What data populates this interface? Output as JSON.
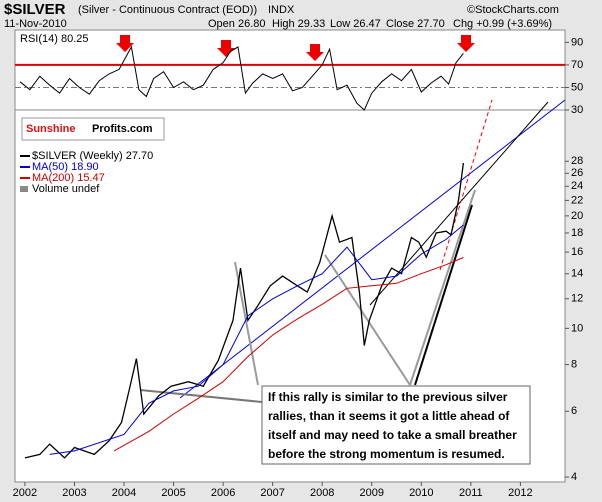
{
  "header": {
    "symbol": "$SILVER",
    "name": "(Silver - Continuous Contract (EOD))",
    "exchange": "INDX",
    "date": "11-Nov-2010",
    "open": "Open 26.80",
    "high": "High 29.33",
    "low": "Low 26.47",
    "close": "Close 27.70",
    "change": "Chg +0.99 (+3.69%)",
    "watermark": "©StockCharts.com"
  },
  "logo": {
    "part1": "Sunshine",
    "part2": "Profits.com"
  },
  "annotation": [
    "If this rally is similar to the previous silver",
    "rallies, than it seems it got a little ahead of",
    "itself and may need to take a small breather",
    "before the strong momentum is resumed."
  ],
  "chart_data": [
    {
      "type": "line",
      "legend_label": "RSI(14) 80.25",
      "ylim": [
        30,
        101
      ],
      "yticks": [
        90,
        70,
        50,
        30
      ],
      "xlim": [
        2001.8,
        2012.9
      ],
      "hlines": [
        {
          "value": 70,
          "color": "#dd0000",
          "style": "solid"
        },
        {
          "value": 50,
          "color": "#777777",
          "style": "dash"
        }
      ],
      "series": [
        {
          "color": "#000000",
          "x": [
            2001.9,
            2002.1,
            2002.3,
            2002.5,
            2002.7,
            2002.9,
            2003.1,
            2003.3,
            2003.5,
            2003.7,
            2003.9,
            2004.05,
            2004.15,
            2004.3,
            2004.45,
            2004.6,
            2004.8,
            2005.0,
            2005.2,
            2005.4,
            2005.6,
            2005.8,
            2006.0,
            2006.15,
            2006.3,
            2006.45,
            2006.6,
            2006.8,
            2007.0,
            2007.2,
            2007.4,
            2007.6,
            2007.8,
            2008.0,
            2008.15,
            2008.3,
            2008.5,
            2008.7,
            2008.85,
            2009.0,
            2009.2,
            2009.4,
            2009.6,
            2009.8,
            2010.0,
            2010.2,
            2010.4,
            2010.55,
            2010.7,
            2010.85
          ],
          "values": [
            55,
            48,
            60,
            52,
            45,
            58,
            50,
            44,
            56,
            62,
            66,
            78,
            86,
            48,
            42,
            58,
            64,
            50,
            55,
            48,
            52,
            66,
            72,
            82,
            86,
            45,
            54,
            62,
            58,
            62,
            47,
            50,
            60,
            70,
            84,
            48,
            52,
            36,
            30,
            45,
            55,
            62,
            56,
            66,
            46,
            54,
            60,
            53,
            72,
            80.25
          ]
        }
      ]
    },
    {
      "type": "line",
      "log_y": true,
      "ylim": [
        3.88,
        38.4
      ],
      "yticks": [
        4,
        6,
        8,
        10,
        12,
        14,
        16,
        18,
        20,
        22,
        24,
        26,
        28
      ],
      "xlim": [
        2001.8,
        2012.9
      ],
      "xticks": [
        2002,
        2003,
        2004,
        2005,
        2006,
        2007,
        2008,
        2009,
        2010,
        2011,
        2012
      ],
      "legend_note": "Volume undef",
      "series": [
        {
          "name": "$SILVER (Weekly) 27.70",
          "color": "#000000",
          "x": [
            2002.0,
            2002.3,
            2002.5,
            2002.8,
            2003.0,
            2003.4,
            2003.7,
            2003.95,
            2004.1,
            2004.25,
            2004.4,
            2004.7,
            2004.95,
            2005.3,
            2005.6,
            2005.9,
            2006.2,
            2006.35,
            2006.5,
            2006.7,
            2006.95,
            2007.2,
            2007.5,
            2007.7,
            2007.95,
            2008.2,
            2008.35,
            2008.6,
            2008.75,
            2008.85,
            2008.95,
            2009.2,
            2009.4,
            2009.6,
            2009.8,
            2009.95,
            2010.1,
            2010.3,
            2010.5,
            2010.6,
            2010.75,
            2010.85
          ],
          "values": [
            4.5,
            4.6,
            4.9,
            4.5,
            4.8,
            4.6,
            5.0,
            5.6,
            6.8,
            8.3,
            5.9,
            6.6,
            7.0,
            7.2,
            7.0,
            8.2,
            10.5,
            14.5,
            10.5,
            11.5,
            13.0,
            13.8,
            13.0,
            12.5,
            15.0,
            20.0,
            17.0,
            17.5,
            12.5,
            9.0,
            10.5,
            13.0,
            14.5,
            14.0,
            17.5,
            17.0,
            15.5,
            18.0,
            18.2,
            17.8,
            22.0,
            27.7
          ]
        },
        {
          "name": "MA(50) 18.90",
          "color": "#0000cc",
          "x": [
            2002.5,
            2003.0,
            2004.0,
            2004.5,
            2005.0,
            2005.5,
            2006.0,
            2006.5,
            2007.0,
            2007.5,
            2008.0,
            2008.5,
            2009.0,
            2009.5,
            2010.0,
            2010.5,
            2010.85
          ],
          "values": [
            4.6,
            4.7,
            5.2,
            6.3,
            6.8,
            7.0,
            8.0,
            10.8,
            12.0,
            13.0,
            14.0,
            16.5,
            13.5,
            13.8,
            15.8,
            17.3,
            18.9
          ]
        },
        {
          "name": "MA(200) 15.47",
          "color": "#cc0000",
          "x": [
            2003.8,
            2004.5,
            2005.0,
            2005.5,
            2006.0,
            2006.5,
            2007.0,
            2007.5,
            2008.0,
            2008.5,
            2009.0,
            2009.5,
            2010.0,
            2010.5,
            2010.85
          ],
          "values": [
            4.7,
            5.3,
            5.9,
            6.5,
            7.2,
            8.4,
            9.6,
            10.6,
            11.6,
            12.8,
            13.0,
            13.2,
            14.0,
            14.8,
            15.47
          ]
        }
      ]
    }
  ]
}
